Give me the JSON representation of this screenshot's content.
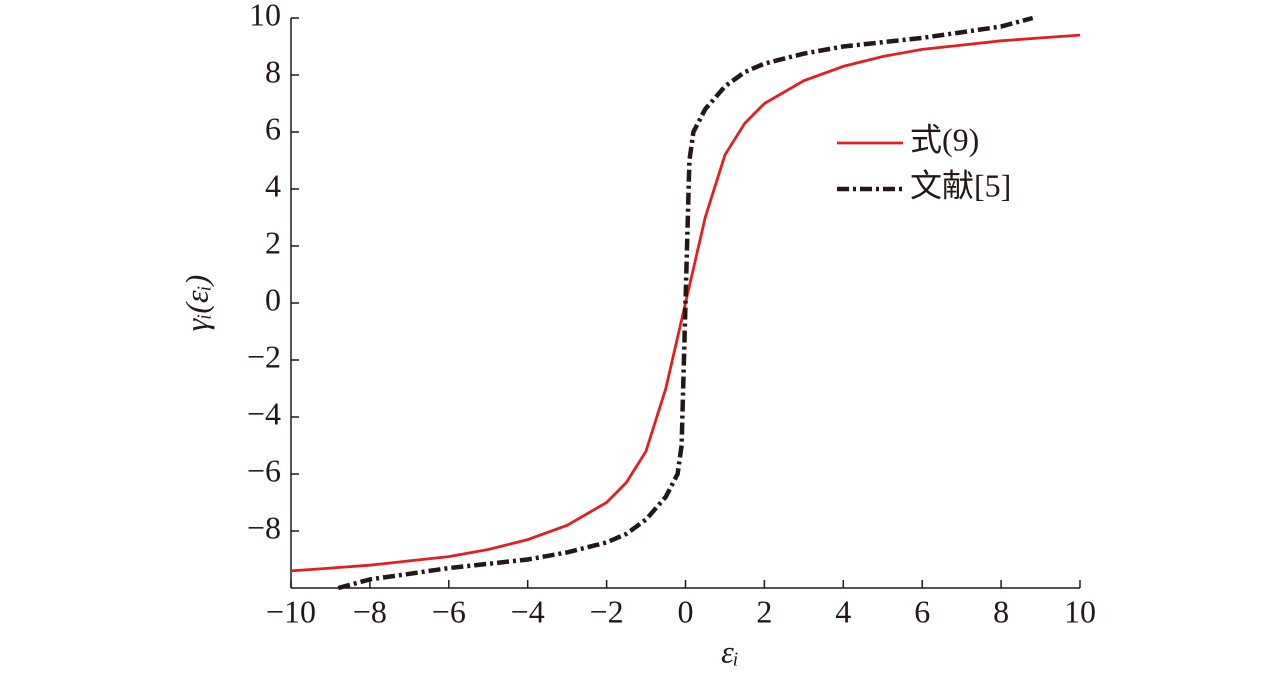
{
  "chart_data": {
    "type": "line",
    "x_label": "εᵢ",
    "y_label": "γᵢ(εᵢ)",
    "x": [
      -10,
      -9,
      -8.8,
      -8,
      -7,
      -6,
      -5,
      -4,
      -3,
      -2,
      -1.5,
      -1,
      -0.5,
      -0.2,
      -0.1,
      0,
      0.1,
      0.2,
      0.5,
      1,
      1.5,
      2,
      3,
      4,
      5,
      6,
      7,
      8,
      8.8,
      9,
      10
    ],
    "series": [
      {
        "name": "式(9)",
        "color": "#e02020",
        "style": "solid",
        "values": [
          -9.4,
          -9.3,
          -9.28,
          -9.2,
          -9.05,
          -8.9,
          -8.65,
          -8.3,
          -7.8,
          -7.0,
          -6.3,
          -5.2,
          -3.0,
          -1.2,
          -0.6,
          0,
          0.6,
          1.2,
          3.0,
          5.2,
          6.3,
          7.0,
          7.8,
          8.3,
          8.65,
          8.9,
          9.05,
          9.2,
          9.28,
          9.3,
          9.4
        ]
      },
      {
        "name": "文献[5]",
        "color": "#231815",
        "style": "dashdot",
        "values": [
          null,
          null,
          -10,
          -9.7,
          -9.5,
          -9.3,
          -9.15,
          -9.0,
          -8.75,
          -8.4,
          -8.1,
          -7.6,
          -6.8,
          -6.0,
          -5.0,
          0,
          5.0,
          6.0,
          6.8,
          7.6,
          8.1,
          8.4,
          8.75,
          9.0,
          9.15,
          9.3,
          9.5,
          9.7,
          10,
          null,
          null
        ]
      }
    ],
    "xlim": [
      -10,
      10
    ],
    "ylim": [
      -10,
      10
    ],
    "xticks": [
      {
        "value": -10,
        "label": "−10"
      },
      {
        "value": -8,
        "label": "−8"
      },
      {
        "value": -6,
        "label": "−6"
      },
      {
        "value": -4,
        "label": "−4"
      },
      {
        "value": -2,
        "label": "−2"
      },
      0,
      2,
      4,
      6,
      8,
      10
    ],
    "yticks": [
      {
        "value": -8,
        "label": "−8"
      },
      {
        "value": -6,
        "label": "−6"
      },
      {
        "value": -4,
        "label": "−4"
      },
      {
        "value": -2,
        "label": "−2"
      },
      0,
      2,
      4,
      6,
      8,
      10
    ],
    "legend": "upper-right"
  }
}
